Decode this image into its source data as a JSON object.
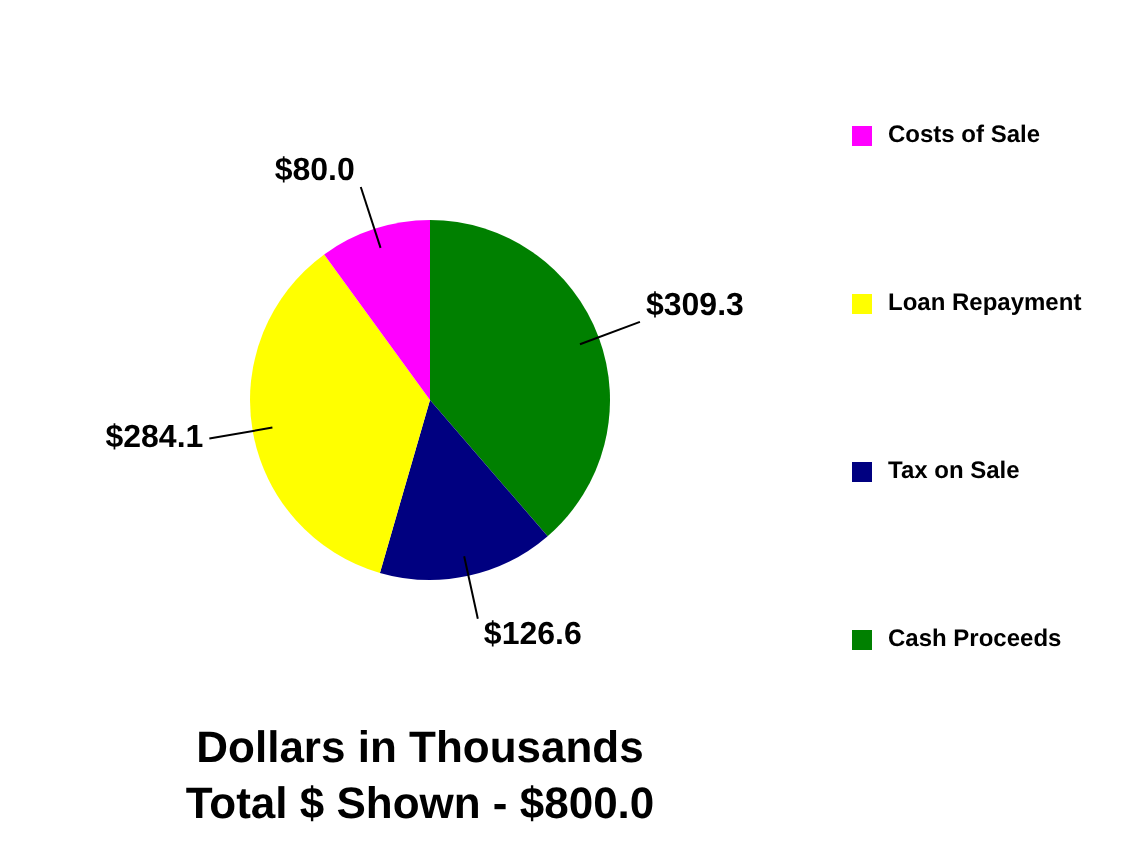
{
  "chart_data": {
    "type": "pie",
    "title": "Dollars in Thousands",
    "subtitle": "Total $ Shown - $800.0",
    "categories": [
      "Cash Proceeds",
      "Tax on Sale",
      "Loan Repayment",
      "Costs of Sale"
    ],
    "values": [
      309.3,
      126.6,
      284.1,
      80.0
    ],
    "colors": [
      "#008000",
      "#000080",
      "#ffff00",
      "#ff00ff"
    ],
    "value_labels": [
      "$309.3",
      "$126.6",
      "$284.1",
      "$80.0"
    ],
    "legend": "right"
  }
}
